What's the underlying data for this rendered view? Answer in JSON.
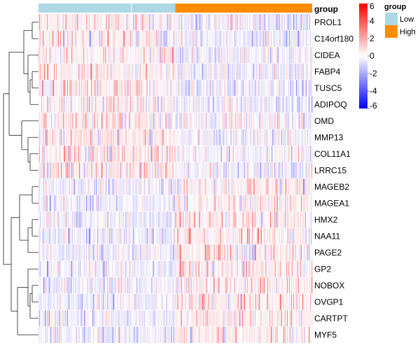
{
  "chart_data": {
    "type": "heatmap",
    "annotation_title": "group",
    "legend_title": "group",
    "groups": [
      {
        "name": "Low",
        "color": "#ADD8E6"
      },
      {
        "name": "High",
        "color": "#FF8C00"
      }
    ],
    "sample_counts": {
      "Low": 195,
      "High": 195
    },
    "rows": [
      "PROL1",
      "C14orf180",
      "CIDEA",
      "FABP4",
      "TUSC5",
      "ADIPOQ",
      "OMD",
      "MMP13",
      "COL11A1",
      "LRRC15",
      "MAGEB2",
      "MAGEA1",
      "HMX2",
      "NAA11",
      "PAGE2",
      "GP2",
      "NOBOX",
      "OVGP1",
      "CARTPT",
      "MYF5"
    ],
    "color_scale": {
      "min": -6,
      "mid": 0,
      "max": 6,
      "low_color": "#0000FF",
      "mid_color": "#FFFFFF",
      "high_color": "#FF0000",
      "ticks": [
        6,
        4,
        2,
        0,
        -2,
        -4,
        -6
      ]
    },
    "row_dendrogram": true,
    "column_splits_low": [
      0.68
    ],
    "column_splits_high": [
      0.97
    ]
  }
}
